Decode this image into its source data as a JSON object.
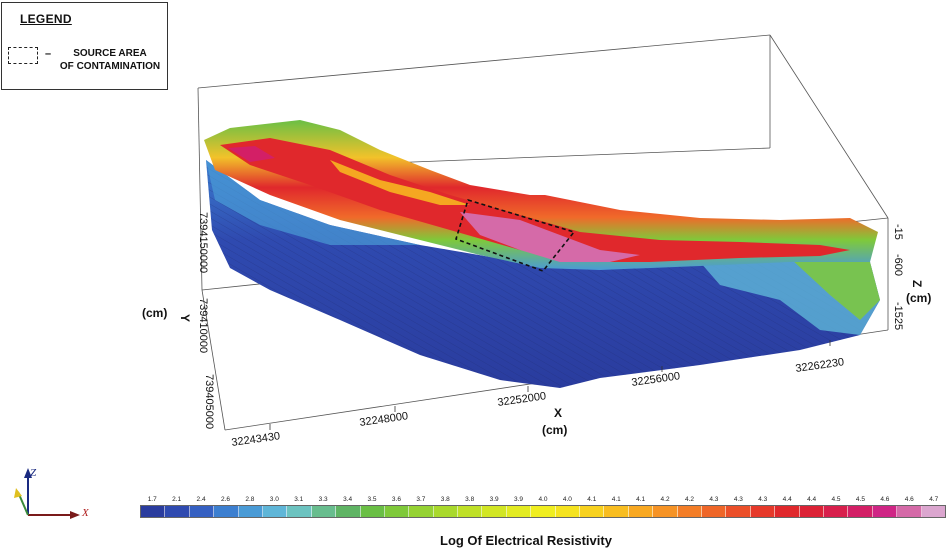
{
  "legend": {
    "title": "LEGEND",
    "dash": "–",
    "item_line1": "SOURCE AREA",
    "item_line2": "OF CONTAMINATION"
  },
  "axes": {
    "x_ticks": [
      "32243430",
      "32248000",
      "32252000",
      "32256000",
      "32262230"
    ],
    "x_label": "X",
    "x_unit": "(cm)",
    "y_ticks": [
      "7394150000",
      "739410000",
      "739405000"
    ],
    "y_label": "Y",
    "y_unit": "(cm)",
    "z_ticks": [
      "-15",
      "-600",
      "-1525"
    ],
    "z_label": "Z",
    "z_unit": "(cm)"
  },
  "triad": {
    "z": "Z",
    "x": "X"
  },
  "colorbar": {
    "title": "Log Of Electrical Resistivity",
    "ticks": [
      "1.7",
      "2.1",
      "2.4",
      "2.6",
      "2.8",
      "3.0",
      "3.1",
      "3.3",
      "3.4",
      "3.5",
      "3.6",
      "3.7",
      "3.8",
      "3.8",
      "3.9",
      "3.9",
      "4.0",
      "4.0",
      "4.1",
      "4.1",
      "4.1",
      "4.2",
      "4.2",
      "4.3",
      "4.3",
      "4.3",
      "4.4",
      "4.4",
      "4.5",
      "4.5",
      "4.6",
      "4.6",
      "4.7"
    ],
    "colors": [
      "#2a3c9e",
      "#2f4ab0",
      "#3560c2",
      "#3c7fd0",
      "#4a9bd6",
      "#5fb6d8",
      "#6cc3c0",
      "#68bd8e",
      "#5fb464",
      "#6abf45",
      "#7fc93a",
      "#95d233",
      "#a9d92c",
      "#bfe027",
      "#d2e624",
      "#e3eb22",
      "#f0ee20",
      "#f5e31f",
      "#f7d11f",
      "#f8bd20",
      "#f8a822",
      "#f69325",
      "#f37d27",
      "#ef6628",
      "#eb4f29",
      "#e6392a",
      "#e0282c",
      "#dc2236",
      "#d81f4c",
      "#d31f66",
      "#cf2585",
      "#d56aa8",
      "#dba6cf"
    ]
  },
  "colors": {
    "low": "#2a3c9e",
    "mid": "#6abf45",
    "high": "#e0282c",
    "peak": "#d56aa8"
  }
}
